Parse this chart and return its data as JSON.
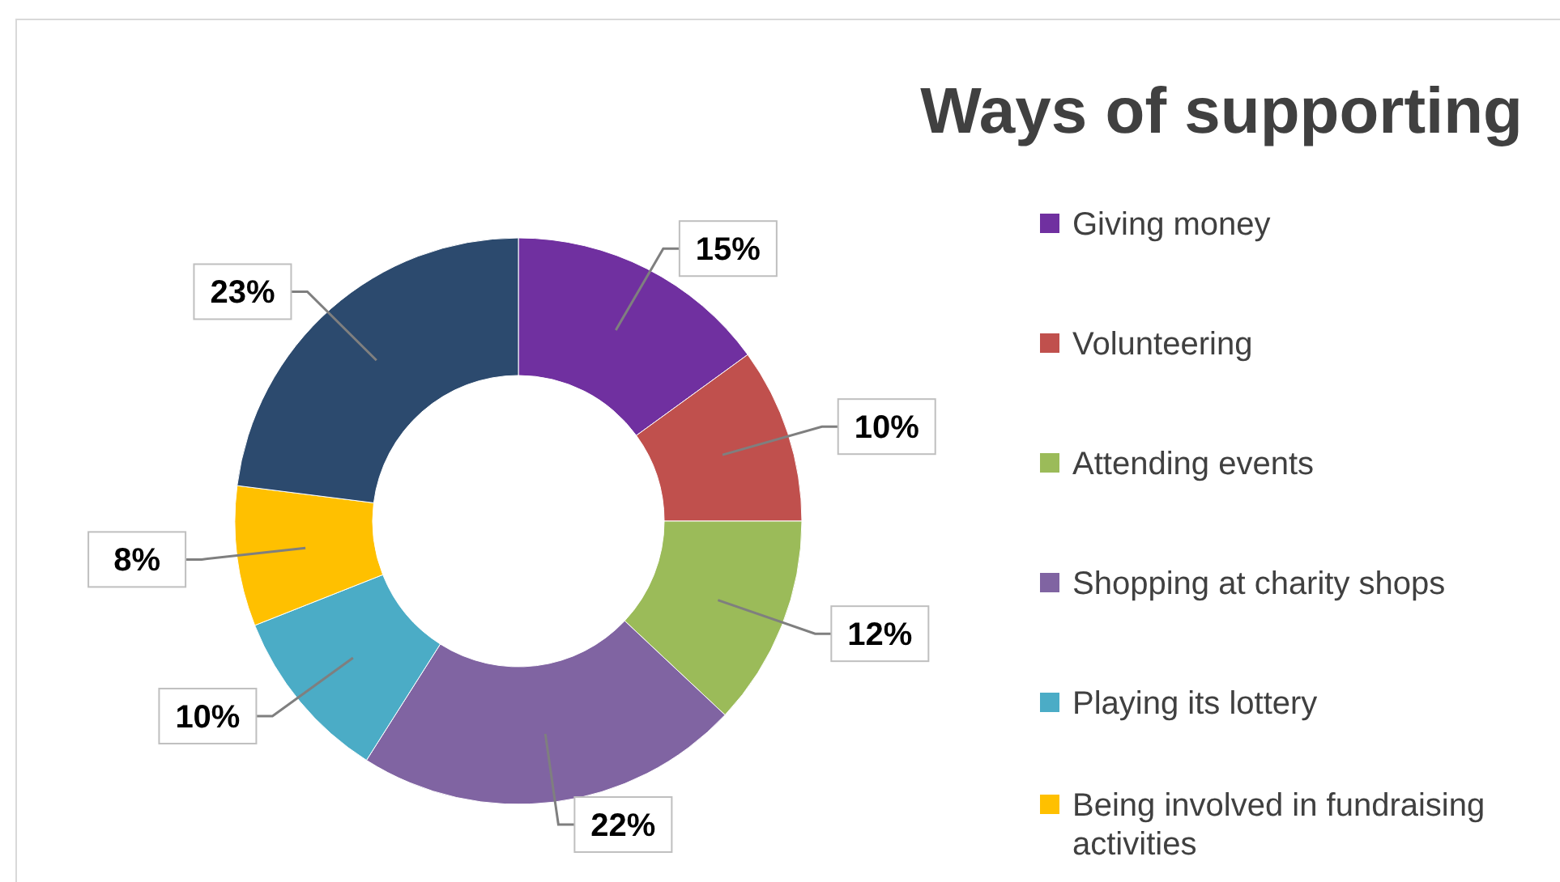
{
  "chart_data": {
    "type": "donut",
    "title": "Ways of supporting",
    "categories": [
      "Giving money",
      "Volunteering",
      "Attending events",
      "Shopping at charity shops",
      "Playing its lottery",
      "Being involved in fundraising activities",
      null
    ],
    "values": [
      15,
      10,
      12,
      22,
      10,
      8,
      23
    ],
    "colors": [
      "#7030a0",
      "#c0504d",
      "#9bbb59",
      "#8064a2",
      "#4bacc6",
      "#ffc000",
      "#2c4a6e"
    ],
    "value_labels": [
      "15%",
      "10%",
      "12%",
      "22%",
      "10%",
      "8%",
      "23%"
    ],
    "legend": "right"
  }
}
